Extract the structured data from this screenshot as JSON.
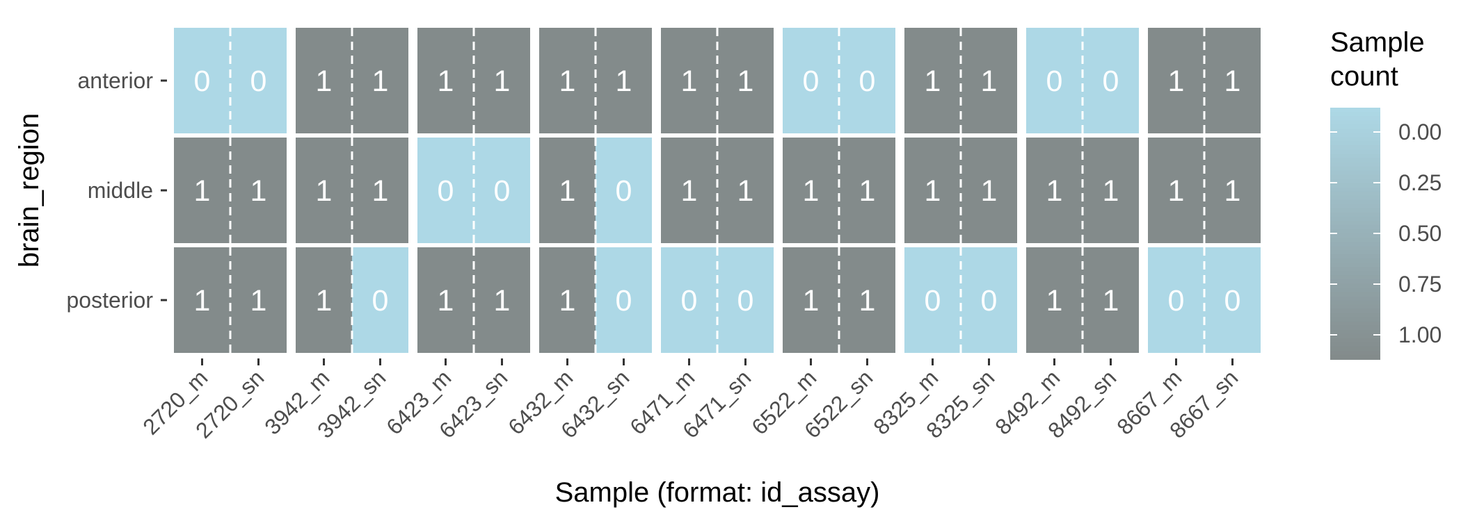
{
  "chart_data": {
    "type": "heatmap",
    "x": [
      "2720_m",
      "2720_sn",
      "3942_m",
      "3942_sn",
      "6423_m",
      "6423_sn",
      "6432_m",
      "6432_sn",
      "6471_m",
      "6471_sn",
      "6522_m",
      "6522_sn",
      "8325_m",
      "8325_sn",
      "8492_m",
      "8492_sn",
      "8667_m",
      "8667_sn"
    ],
    "y": [
      "anterior",
      "middle",
      "posterior"
    ],
    "values": [
      [
        0,
        0,
        1,
        1,
        1,
        1,
        1,
        1,
        1,
        1,
        0,
        0,
        1,
        1,
        0,
        0,
        1,
        1
      ],
      [
        1,
        1,
        1,
        1,
        0,
        0,
        1,
        0,
        1,
        1,
        1,
        1,
        1,
        1,
        1,
        1,
        1,
        1
      ],
      [
        1,
        1,
        1,
        0,
        1,
        1,
        1,
        0,
        0,
        0,
        1,
        1,
        0,
        0,
        1,
        1,
        0,
        0
      ]
    ],
    "xlabel": "Sample (format: id_assay)",
    "ylabel": "brain_region",
    "legend": {
      "title": [
        "Sample",
        "count"
      ],
      "placement": "right",
      "breaks": [
        "0.00",
        "0.25",
        "0.50",
        "0.75",
        "1.00"
      ]
    },
    "color_scale": {
      "low": "#add8e6",
      "high": "#838b8b"
    },
    "grid": false
  }
}
